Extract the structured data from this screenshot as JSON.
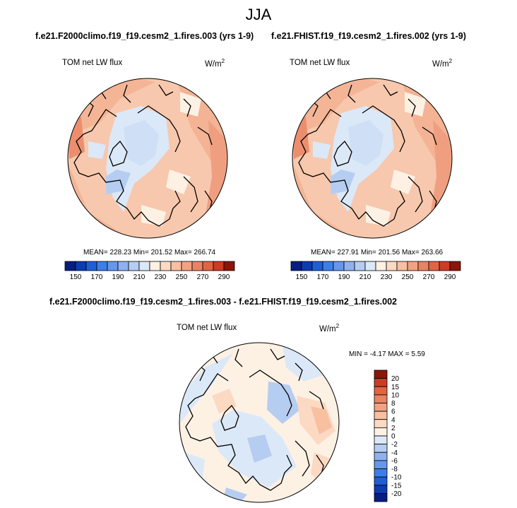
{
  "figure": {
    "season": "JJA",
    "variable": "TOM net LW flux",
    "units_base": "W/m",
    "units_exp": "2"
  },
  "panels": {
    "left": {
      "case": "f.e21.F2000climo.f19_f19.cesm2_1.fires.003 (yrs 1-9)",
      "stats": "MEAN= 228.23  Min= 201.52  Max= 266.74"
    },
    "right": {
      "case": "f.e21.FHIST.f19_f19.cesm2_1.fires.002 (yrs 1-9)",
      "stats": "MEAN= 227.91  Min= 201.56  Max= 263.66"
    },
    "diff": {
      "case": "f.e21.F2000climo.f19_f19.cesm2_1.fires.003 - f.e21.FHIST.f19_f19.cesm2_1.fires.002",
      "stats": "MIN =  -4.17 MAX =   5.59"
    }
  },
  "chart_data": [
    {
      "type": "heatmap",
      "projection": "north-polar-stereographic",
      "title": "f.e21.F2000climo.f19_f19.cesm2_1.fires.003 (yrs 1-9)",
      "variable": "TOM net LW flux",
      "units": "W/m^2",
      "mean": 228.23,
      "min": 201.52,
      "max": 266.74,
      "colorbar_levels": [
        150,
        160,
        170,
        180,
        190,
        200,
        210,
        220,
        230,
        240,
        250,
        260,
        270,
        280,
        290
      ],
      "colorbar_labels": [
        "150",
        "170",
        "190",
        "210",
        "230",
        "250",
        "270",
        "290"
      ],
      "colorbar_colors": [
        "#081d80",
        "#0c3cb0",
        "#1f5fd6",
        "#3d7fe8",
        "#6697ec",
        "#8fb2ee",
        "#b6cdf2",
        "#dbe8f7",
        "#fdf1e4",
        "#fcd9c2",
        "#f8bfa1",
        "#f2a283",
        "#ea8363",
        "#df6545",
        "#cc3c26",
        "#8e1408"
      ]
    },
    {
      "type": "heatmap",
      "projection": "north-polar-stereographic",
      "title": "f.e21.FHIST.f19_f19.cesm2_1.fires.002 (yrs 1-9)",
      "variable": "TOM net LW flux",
      "units": "W/m^2",
      "mean": 227.91,
      "min": 201.56,
      "max": 263.66,
      "colorbar_levels": [
        150,
        160,
        170,
        180,
        190,
        200,
        210,
        220,
        230,
        240,
        250,
        260,
        270,
        280,
        290
      ],
      "colorbar_labels": [
        "150",
        "170",
        "190",
        "210",
        "230",
        "250",
        "270",
        "290"
      ],
      "colorbar_colors": [
        "#081d80",
        "#0c3cb0",
        "#1f5fd6",
        "#3d7fe8",
        "#6697ec",
        "#8fb2ee",
        "#b6cdf2",
        "#dbe8f7",
        "#fdf1e4",
        "#fcd9c2",
        "#f8bfa1",
        "#f2a283",
        "#ea8363",
        "#df6545",
        "#cc3c26",
        "#8e1408"
      ]
    },
    {
      "type": "heatmap",
      "projection": "north-polar-stereographic",
      "title": "f.e21.F2000climo.f19_f19.cesm2_1.fires.003 - f.e21.FHIST.f19_f19.cesm2_1.fires.002",
      "variable": "TOM net LW flux",
      "units": "W/m^2",
      "min": -4.17,
      "max": 5.59,
      "colorbar_levels": [
        -20,
        -15,
        -10,
        -8,
        -6,
        -4,
        -2,
        0,
        2,
        4,
        6,
        8,
        10,
        15,
        20
      ],
      "colorbar_labels": [
        "20",
        "15",
        "10",
        "8",
        "6",
        "4",
        "2",
        "0",
        "-2",
        "-4",
        "-6",
        "-8",
        "-10",
        "-15",
        "-20"
      ],
      "colorbar_colors": [
        "#081d80",
        "#0c3cb0",
        "#1f5fd6",
        "#3d7fe8",
        "#6697ec",
        "#8fb2ee",
        "#b6cdf2",
        "#dbe8f7",
        "#fdf1e4",
        "#fcd9c2",
        "#f8bfa1",
        "#f2a283",
        "#ea8363",
        "#df6545",
        "#cc3c26",
        "#8e1408"
      ]
    }
  ]
}
